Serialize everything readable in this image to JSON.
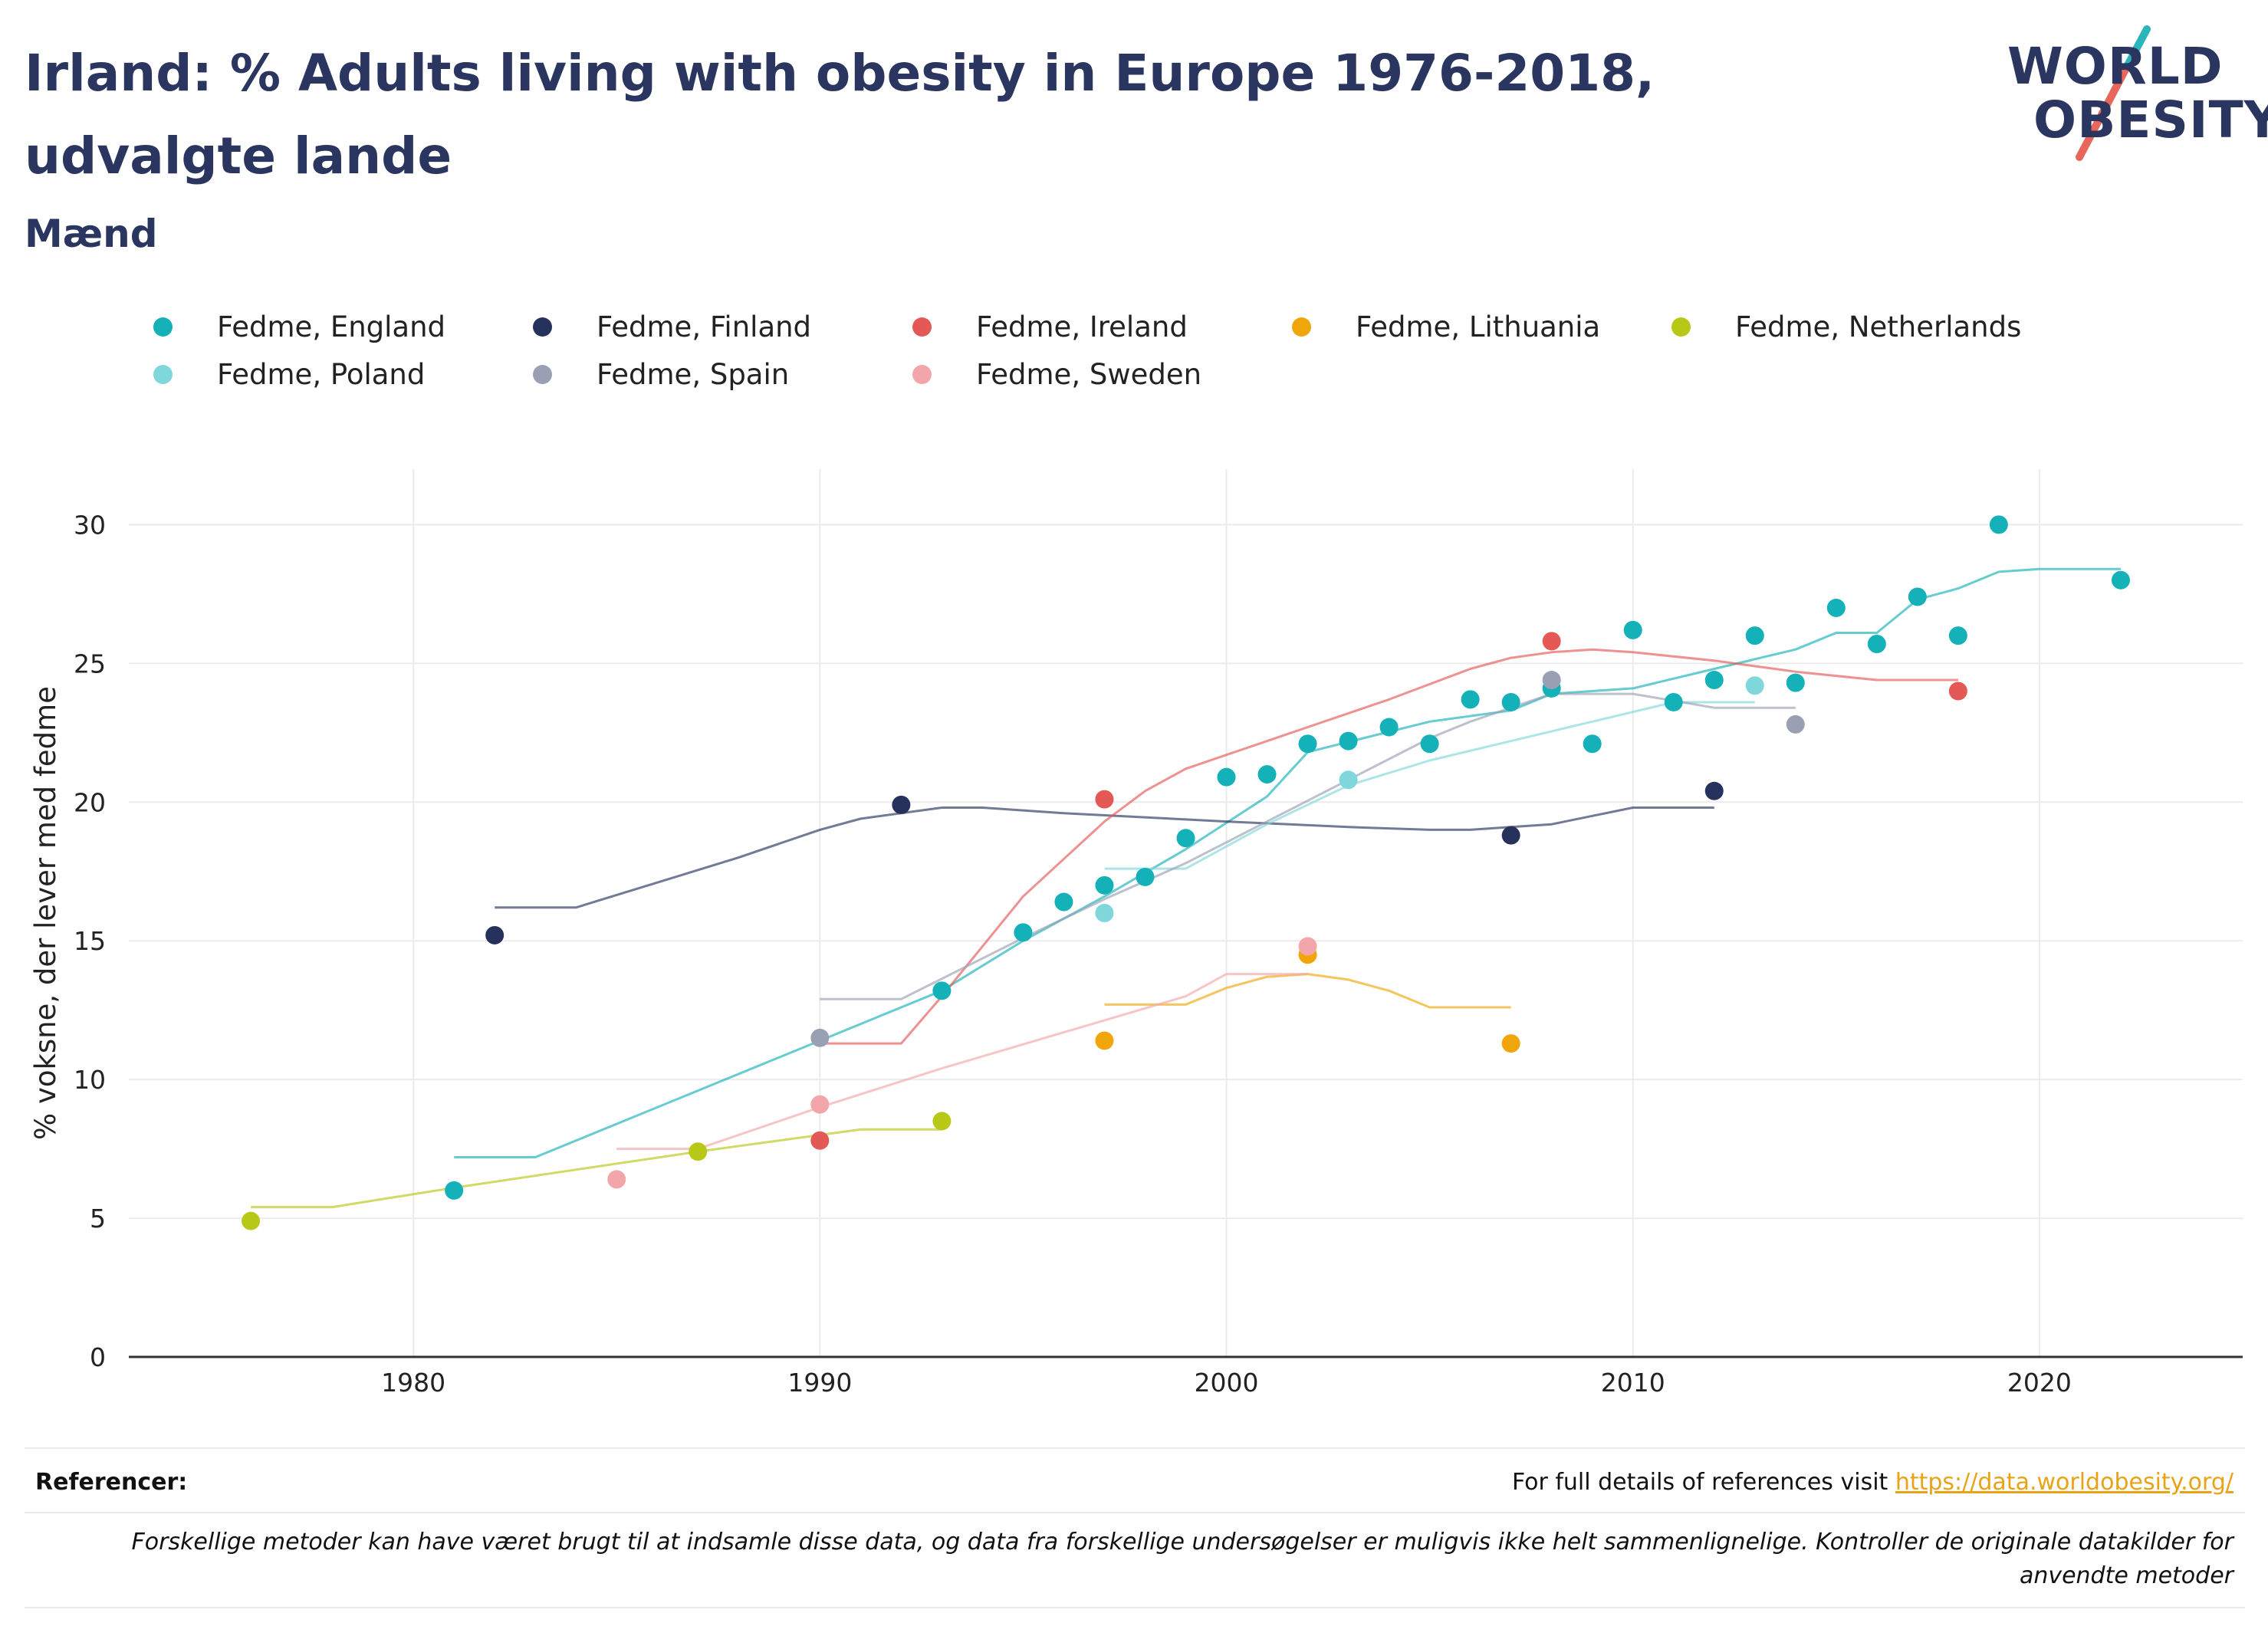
{
  "title": "Irland: % Adults living with obesity in Europe 1976-2018, udvalgte lande",
  "subtitle": "Mænd",
  "logo": {
    "line1": "WORLD",
    "line2": "OBESITY"
  },
  "footer": {
    "references_label": "Referencer:",
    "references_text": "For full details of references visit ",
    "references_link": "https://data.worldobesity.org/",
    "disclaimer": "Forskellige metoder kan have været brugt til at indsamle disse data, og data fra forskellige undersøgelser er muligvis ikke helt sammenlignelige. Kontroller de originale datakilder for anvendte metoder"
  },
  "chart_data": {
    "type": "scatter",
    "xlabel": "",
    "ylabel": "% voksne, der lever med fedme",
    "xlim": [
      1973,
      2025
    ],
    "ylim": [
      0,
      32
    ],
    "x_ticks": [
      1980,
      1990,
      2000,
      2010,
      2020
    ],
    "y_ticks": [
      0,
      5,
      10,
      15,
      20,
      25,
      30
    ],
    "grid": true,
    "legend_position": "top",
    "series": [
      {
        "name": "Fedme, England",
        "color": "#14b1b9",
        "points": [
          [
            1981,
            6.0
          ],
          [
            1993,
            13.2
          ],
          [
            1995,
            15.3
          ],
          [
            1996,
            16.4
          ],
          [
            1997,
            17.0
          ],
          [
            1998,
            17.3
          ],
          [
            1999,
            18.7
          ],
          [
            2000,
            20.9
          ],
          [
            2001,
            21.0
          ],
          [
            2002,
            22.1
          ],
          [
            2003,
            22.2
          ],
          [
            2004,
            22.7
          ],
          [
            2005,
            22.1
          ],
          [
            2006,
            23.7
          ],
          [
            2007,
            23.6
          ],
          [
            2008,
            24.1
          ],
          [
            2009,
            22.1
          ],
          [
            2010,
            26.2
          ],
          [
            2011,
            23.6
          ],
          [
            2012,
            24.4
          ],
          [
            2013,
            26.0
          ],
          [
            2014,
            24.3
          ],
          [
            2015,
            27.0
          ],
          [
            2016,
            25.7
          ],
          [
            2017,
            27.4
          ],
          [
            2018,
            26.0
          ],
          [
            2019,
            30.0
          ],
          [
            2022,
            28.0
          ]
        ],
        "trend": [
          [
            1981,
            7.2
          ],
          [
            1983,
            7.2
          ],
          [
            1990,
            11.4
          ],
          [
            1993,
            13.2
          ],
          [
            1995,
            15.0
          ],
          [
            1997,
            16.6
          ],
          [
            1999,
            18.3
          ],
          [
            2001,
            20.2
          ],
          [
            2002,
            21.8
          ],
          [
            2005,
            22.9
          ],
          [
            2007,
            23.3
          ],
          [
            2008,
            23.9
          ],
          [
            2010,
            24.1
          ],
          [
            2012,
            24.8
          ],
          [
            2014,
            25.5
          ],
          [
            2015,
            26.1
          ],
          [
            2016,
            26.1
          ],
          [
            2017,
            27.3
          ],
          [
            2018,
            27.7
          ],
          [
            2019,
            28.3
          ],
          [
            2020,
            28.4
          ],
          [
            2022,
            28.4
          ]
        ]
      },
      {
        "name": "Fedme, Finland",
        "color": "#26325c",
        "points": [
          [
            1982,
            15.2
          ],
          [
            1992,
            19.9
          ],
          [
            2007,
            18.8
          ],
          [
            2012,
            20.4
          ]
        ],
        "trend": [
          [
            1982,
            16.2
          ],
          [
            1984,
            16.2
          ],
          [
            1988,
            18.0
          ],
          [
            1990,
            19.0
          ],
          [
            1991,
            19.4
          ],
          [
            1993,
            19.8
          ],
          [
            1994,
            19.8
          ],
          [
            1996,
            19.6
          ],
          [
            2000,
            19.3
          ],
          [
            2003,
            19.1
          ],
          [
            2005,
            19.0
          ],
          [
            2006,
            19.0
          ],
          [
            2007,
            19.1
          ],
          [
            2008,
            19.2
          ],
          [
            2009,
            19.5
          ],
          [
            2010,
            19.8
          ],
          [
            2012,
            19.8
          ]
        ]
      },
      {
        "name": "Fedme, Ireland",
        "color": "#e45856",
        "points": [
          [
            1990,
            7.8
          ],
          [
            1997,
            20.1
          ],
          [
            2008,
            25.8
          ],
          [
            2018,
            24.0
          ]
        ],
        "trend": [
          [
            1990,
            11.3
          ],
          [
            1992,
            11.3
          ],
          [
            1993,
            13.0
          ],
          [
            1995,
            16.6
          ],
          [
            1997,
            19.3
          ],
          [
            1998,
            20.4
          ],
          [
            1999,
            21.2
          ],
          [
            2000,
            21.7
          ],
          [
            2002,
            22.7
          ],
          [
            2004,
            23.7
          ],
          [
            2006,
            24.8
          ],
          [
            2007,
            25.2
          ],
          [
            2008,
            25.4
          ],
          [
            2009,
            25.5
          ],
          [
            2010,
            25.4
          ],
          [
            2012,
            25.1
          ],
          [
            2014,
            24.7
          ],
          [
            2016,
            24.4
          ],
          [
            2018,
            24.4
          ]
        ]
      },
      {
        "name": "Fedme, Lithuania",
        "color": "#f0a60a",
        "points": [
          [
            1997,
            11.4
          ],
          [
            2002,
            14.5
          ],
          [
            2007,
            11.3
          ]
        ],
        "trend": [
          [
            1997,
            12.7
          ],
          [
            1999,
            12.7
          ],
          [
            2000,
            13.3
          ],
          [
            2001,
            13.7
          ],
          [
            2002,
            13.8
          ],
          [
            2003,
            13.6
          ],
          [
            2004,
            13.2
          ],
          [
            2005,
            12.6
          ],
          [
            2007,
            12.6
          ]
        ]
      },
      {
        "name": "Fedme, Netherlands",
        "color": "#b7c816",
        "points": [
          [
            1976,
            4.9
          ],
          [
            1987,
            7.4
          ],
          [
            1993,
            8.5
          ]
        ],
        "trend": [
          [
            1976,
            5.4
          ],
          [
            1978,
            5.4
          ],
          [
            1981,
            6.1
          ],
          [
            1987,
            7.4
          ],
          [
            1990,
            8.0
          ],
          [
            1991,
            8.2
          ],
          [
            1993,
            8.2
          ]
        ]
      },
      {
        "name": "Fedme, Poland",
        "color": "#7fd7dc",
        "points": [
          [
            1997,
            16.0
          ],
          [
            2003,
            20.8
          ],
          [
            2013,
            24.2
          ]
        ],
        "trend": [
          [
            1997,
            17.6
          ],
          [
            1999,
            17.6
          ],
          [
            2001,
            19.2
          ],
          [
            2003,
            20.6
          ],
          [
            2005,
            21.5
          ],
          [
            2007,
            22.2
          ],
          [
            2009,
            22.9
          ],
          [
            2011,
            23.6
          ],
          [
            2013,
            23.6
          ]
        ]
      },
      {
        "name": "Fedme, Spain",
        "color": "#9aa0b4",
        "points": [
          [
            1990,
            11.5
          ],
          [
            2008,
            24.4
          ],
          [
            2014,
            22.8
          ]
        ],
        "trend": [
          [
            1990,
            12.9
          ],
          [
            1992,
            12.9
          ],
          [
            1995,
            15.1
          ],
          [
            1997,
            16.5
          ],
          [
            1999,
            17.8
          ],
          [
            2001,
            19.3
          ],
          [
            2003,
            20.8
          ],
          [
            2005,
            22.3
          ],
          [
            2006,
            22.9
          ],
          [
            2008,
            23.9
          ],
          [
            2010,
            23.9
          ],
          [
            2012,
            23.4
          ],
          [
            2014,
            23.4
          ]
        ]
      },
      {
        "name": "Fedme, Sweden",
        "color": "#f3a6a9",
        "points": [
          [
            1985,
            6.4
          ],
          [
            1990,
            9.1
          ],
          [
            2002,
            14.8
          ]
        ],
        "trend": [
          [
            1985,
            7.5
          ],
          [
            1987,
            7.5
          ],
          [
            1990,
            9.0
          ],
          [
            1993,
            10.4
          ],
          [
            1996,
            11.7
          ],
          [
            1999,
            13.0
          ],
          [
            2000,
            13.8
          ],
          [
            2002,
            13.8
          ]
        ]
      }
    ]
  }
}
